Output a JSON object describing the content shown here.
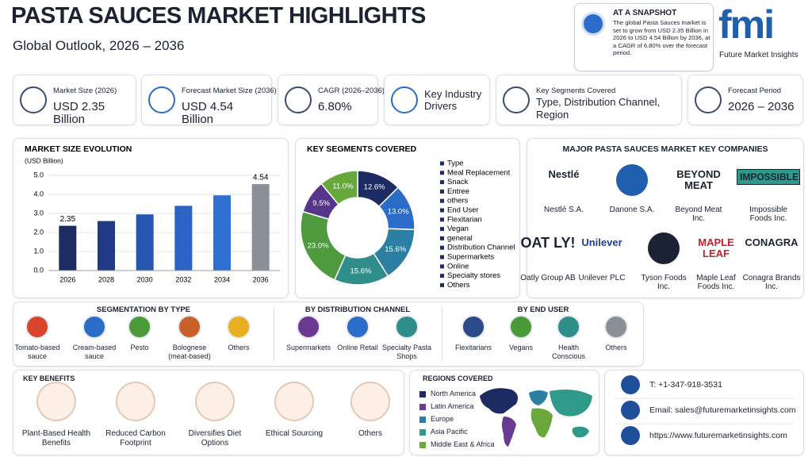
{
  "header": {
    "title": "PASTA SAUCES MARKET HIGHLIGHTS",
    "subtitle": "Global Outlook, 2026 – 2036"
  },
  "snapshot": {
    "title": "AT A SNAPSHOT",
    "text": "The global Pasta Sauces market is set to grow from USD 2.35 Billion in 2026 to USD 4.54 Billion by 2036, at a CAGR of 6.80% over the forecast period."
  },
  "logo": {
    "mark": "fmi",
    "name": "Future Market Insights"
  },
  "kpis": [
    {
      "label": "Market Size (2026)",
      "value": "USD 2.35 Billion"
    },
    {
      "label": "Forecast Market Size (2036)",
      "value": "USD 4.54 Billion"
    },
    {
      "label": "CAGR (2026–2036)",
      "value": "6.80%"
    },
    {
      "label": "Key Industry Drivers"
    },
    {
      "label": "Key Segments Covered",
      "value": "Type, Distribution Channel, Region"
    },
    {
      "label": "Forecast Period",
      "value": "2026 – 2036"
    }
  ],
  "chart_data": [
    {
      "type": "bar",
      "title": "MARKET SIZE EVOLUTION",
      "y_label": "(USD Billion)",
      "categories": [
        "2026",
        "2028",
        "2030",
        "2032",
        "2034",
        "2036"
      ],
      "values": [
        2.35,
        2.6,
        2.95,
        3.4,
        3.95,
        4.54
      ],
      "value_labels": [
        "2.35",
        null,
        null,
        null,
        null,
        "4.54"
      ],
      "colors": [
        "#1d2b63",
        "#203a86",
        "#2556b0",
        "#2a63c4",
        "#2f70d2",
        "#8b8f98"
      ],
      "ylim": [
        0,
        5
      ],
      "yticks": [
        {
          "value": 0,
          "label": "0.0"
        },
        {
          "value": 1,
          "label": "1.0"
        },
        {
          "value": 2,
          "label": "2.0"
        },
        {
          "value": 3,
          "label": "3.0"
        },
        {
          "value": 4,
          "label": "4.0"
        },
        {
          "value": 5,
          "label": "5.0"
        }
      ],
      "grid": true
    },
    {
      "type": "donut",
      "title": "KEY SEGMENTS COVERED",
      "values": [
        12.6,
        13.0,
        15.6,
        15.6,
        23.0,
        9.5,
        11.0
      ],
      "value_labels": [
        "12.6%",
        "13.0%",
        "15.6%",
        "15.6%",
        "23.0%",
        "9.5%",
        "11.0%"
      ],
      "colors": [
        "#1d2b63",
        "#2a6cc8",
        "#2a7fa3",
        "#2f8e8a",
        "#4f9a3c",
        "#56368a",
        "#66a83c"
      ],
      "legend": [
        "Type",
        "Meal Replacement",
        "Snack",
        "Entree",
        "others",
        "End User",
        "Flexitarian",
        "Vegan",
        "general",
        "Distribution Channel",
        "Supermarkets",
        "Online",
        "Specialty stores",
        "Others"
      ]
    }
  ],
  "companies": {
    "title": "MAJOR PASTA SAUCES MARKET KEY COMPANIES",
    "items": [
      {
        "logo": "Nestlé",
        "name": "Nestlé S.A."
      },
      {
        "name": "Danone S.A."
      },
      {
        "logo": "BEYOND MEAT",
        "name": "Beyond Meat Inc."
      },
      {
        "logo": "IMPOSSIBLE",
        "name": "Impossible Foods Inc."
      },
      {
        "logo": "OAT LY!",
        "name": "Oatly Group AB"
      },
      {
        "logo": "Unilever",
        "name": "Unilever PLC"
      },
      {
        "name": "Tyson Foods Inc."
      },
      {
        "logo": "MAPLE LEAF",
        "name": "Maple Leaf Foods Inc."
      },
      {
        "logo": "CONAGRA",
        "name": "Conagra Brands Inc."
      }
    ]
  },
  "segmentation": [
    {
      "title": "SEGMENTATION BY TYPE",
      "items": [
        "Tomato-based sauce",
        "Cream-based sauce",
        "Pesto",
        "Bolognese (meat-based)",
        "Others"
      ]
    },
    {
      "title": "BY DISTRIBUTION CHANNEL",
      "items": [
        "Supermarkets",
        "Online Retail",
        "Specialty Pasta Shops"
      ]
    },
    {
      "title": "BY END USER",
      "items": [
        "Flexitarians",
        "Vegans",
        "Health Conscious",
        "Others"
      ]
    }
  ],
  "benefits": {
    "title": "KEY BENEFITS",
    "items": [
      "Plant-Based Health Benefits",
      "Reduced Carbon Footprint",
      "Diversifies Diet Options",
      "Ethical Sourcing",
      "Others"
    ]
  },
  "regions": {
    "title": "REGIONS COVERED",
    "items": [
      {
        "name": "North America",
        "color": "#1d2b63"
      },
      {
        "name": "Latin America",
        "color": "#6a3a92"
      },
      {
        "name": "Europe",
        "color": "#2a7fa3"
      },
      {
        "name": "Asia Pacific",
        "color": "#2f9a8a"
      },
      {
        "name": "Middle East & Africa",
        "color": "#6aa83c"
      }
    ]
  },
  "contacts": [
    "T: +1-347-918-3531",
    "Email: sales@futuremarketinsights.com",
    "https://www.futuremarketinsights.com"
  ]
}
